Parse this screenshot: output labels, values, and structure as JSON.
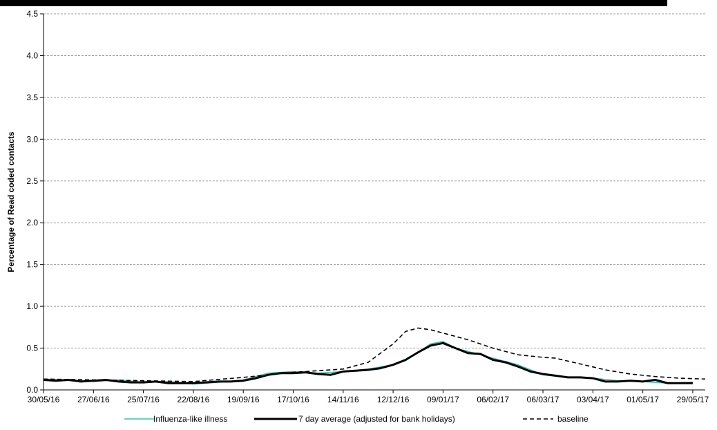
{
  "chart_data": {
    "type": "line",
    "title": "",
    "xlabel": "",
    "ylabel": "Percentage of Read coded contacts",
    "ylim": [
      0,
      4.5
    ],
    "y_ticks": [
      "0.0",
      "0.5",
      "1.0",
      "1.5",
      "2.0",
      "2.5",
      "3.0",
      "3.5",
      "4.0",
      "4.5"
    ],
    "x_start": "2016-05-30",
    "x_end": "2017-06-05",
    "x_ticks": [
      "30/05/16",
      "27/06/16",
      "25/07/16",
      "22/08/16",
      "19/09/16",
      "17/10/16",
      "14/11/16",
      "12/12/16",
      "09/01/17",
      "06/02/17",
      "06/03/17",
      "03/04/17",
      "01/05/17",
      "29/05/17"
    ],
    "grid": "horizontal dashed",
    "legend_position": "bottom",
    "series": [
      {
        "name": "Influenza-like illness",
        "color": "#3dbfb0",
        "style": "solid",
        "x": [
          "2016-05-30",
          "2016-06-13",
          "2016-06-27",
          "2016-07-11",
          "2016-07-25",
          "2016-08-08",
          "2016-08-22",
          "2016-09-05",
          "2016-09-19",
          "2016-10-03",
          "2016-10-17",
          "2016-10-31",
          "2016-11-14",
          "2016-11-28",
          "2016-12-12",
          "2016-12-19",
          "2016-12-26",
          "2017-01-02",
          "2017-01-09",
          "2017-01-16",
          "2017-01-23",
          "2017-02-06",
          "2017-02-20",
          "2017-03-06",
          "2017-03-20",
          "2017-04-03",
          "2017-04-17",
          "2017-05-01",
          "2017-05-15",
          "2017-05-29"
        ],
        "values": [
          0.13,
          0.12,
          0.1,
          0.12,
          0.09,
          0.1,
          0.07,
          0.09,
          0.12,
          0.2,
          0.22,
          0.2,
          0.22,
          0.25,
          0.3,
          0.35,
          0.45,
          0.55,
          0.58,
          0.5,
          0.46,
          0.38,
          0.3,
          0.18,
          0.15,
          0.14,
          0.11,
          0.1,
          0.08,
          0.09
        ]
      },
      {
        "name": "7 day average (adjusted for bank holidays)",
        "color": "#000000",
        "style": "solid",
        "x": [
          "2016-05-30",
          "2016-06-06",
          "2016-06-13",
          "2016-06-20",
          "2016-06-27",
          "2016-07-04",
          "2016-07-11",
          "2016-07-18",
          "2016-07-25",
          "2016-08-01",
          "2016-08-08",
          "2016-08-15",
          "2016-08-22",
          "2016-08-29",
          "2016-09-05",
          "2016-09-12",
          "2016-09-19",
          "2016-09-26",
          "2016-10-03",
          "2016-10-10",
          "2016-10-17",
          "2016-10-24",
          "2016-10-31",
          "2016-11-07",
          "2016-11-14",
          "2016-11-21",
          "2016-11-28",
          "2016-12-05",
          "2016-12-12",
          "2016-12-19",
          "2016-12-26",
          "2017-01-02",
          "2017-01-09",
          "2017-01-16",
          "2017-01-23",
          "2017-01-30",
          "2017-02-06",
          "2017-02-13",
          "2017-02-20",
          "2017-02-27",
          "2017-03-06",
          "2017-03-13",
          "2017-03-20",
          "2017-03-27",
          "2017-04-03",
          "2017-04-10",
          "2017-04-17",
          "2017-04-24",
          "2017-05-01",
          "2017-05-08",
          "2017-05-15",
          "2017-05-22",
          "2017-05-29"
        ],
        "values": [
          0.12,
          0.11,
          0.12,
          0.1,
          0.11,
          0.12,
          0.1,
          0.09,
          0.09,
          0.1,
          0.08,
          0.08,
          0.08,
          0.09,
          0.1,
          0.1,
          0.11,
          0.14,
          0.18,
          0.2,
          0.2,
          0.21,
          0.19,
          0.18,
          0.22,
          0.23,
          0.24,
          0.26,
          0.3,
          0.36,
          0.45,
          0.53,
          0.56,
          0.5,
          0.44,
          0.43,
          0.36,
          0.33,
          0.28,
          0.22,
          0.19,
          0.17,
          0.15,
          0.15,
          0.14,
          0.1,
          0.1,
          0.11,
          0.1,
          0.12,
          0.08,
          0.08,
          0.08
        ]
      },
      {
        "name": "baseline",
        "color": "#000000",
        "style": "dashed",
        "x": [
          "2016-05-30",
          "2016-06-27",
          "2016-07-25",
          "2016-08-22",
          "2016-09-19",
          "2016-10-17",
          "2016-11-14",
          "2016-11-28",
          "2016-12-12",
          "2016-12-19",
          "2016-12-26",
          "2017-01-02",
          "2017-01-09",
          "2017-01-23",
          "2017-02-06",
          "2017-02-20",
          "2017-03-06",
          "2017-03-13",
          "2017-03-27",
          "2017-04-10",
          "2017-04-24",
          "2017-05-08",
          "2017-05-22",
          "2017-06-05"
        ],
        "values": [
          0.13,
          0.12,
          0.11,
          0.1,
          0.15,
          0.21,
          0.25,
          0.33,
          0.55,
          0.7,
          0.74,
          0.72,
          0.68,
          0.6,
          0.5,
          0.42,
          0.39,
          0.38,
          0.31,
          0.24,
          0.19,
          0.16,
          0.14,
          0.13
        ]
      }
    ]
  }
}
